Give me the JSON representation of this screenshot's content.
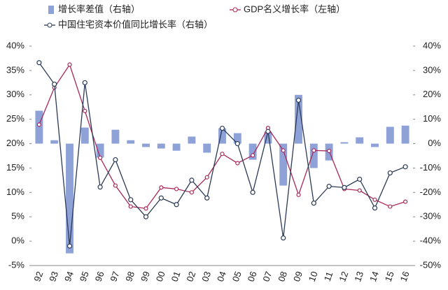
{
  "chart_data": {
    "type": "bar",
    "categories": [
      "92",
      "93",
      "94",
      "95",
      "96",
      "97",
      "98",
      "99",
      "00",
      "01",
      "02",
      "03",
      "04",
      "05",
      "06",
      "07",
      "08",
      "09",
      "10",
      "11",
      "12",
      "13",
      "14",
      "15",
      "16"
    ],
    "series": [
      {
        "name": "增长率差值（右轴）",
        "type": "bar",
        "axis": "y2",
        "color": "#8fa2d8",
        "values": [
          13.5,
          1.4,
          -45,
          6.6,
          -5.7,
          5.7,
          1.4,
          -1.4,
          -2,
          -2.9,
          2.9,
          -3.7,
          6.3,
          4.3,
          -6.6,
          4.9,
          -17.2,
          20,
          -10,
          -6.9,
          0.6,
          2.6,
          -1.4,
          6.9,
          7.4
        ]
      },
      {
        "name": "GDP名义增长率（左轴）",
        "type": "line",
        "color": "#a8285a",
        "values": [
          23.9,
          31.5,
          36.2,
          26.7,
          17.1,
          11.4,
          7.1,
          6.7,
          11,
          10.7,
          10,
          13.1,
          17.9,
          16,
          17.6,
          23.2,
          18.6,
          9.5,
          18.6,
          18.5,
          10.7,
          10.4,
          8.5,
          7.1,
          8.1
        ]
      },
      {
        "name": "中国住宅资本价值同比增长率（右轴）",
        "type": "line",
        "axis": "y2",
        "color": "#2b3a55",
        "values": [
          33.2,
          24.4,
          -42,
          25,
          -17.8,
          -6.6,
          -23,
          -30,
          -22.3,
          -25,
          -15,
          -22.3,
          6.3,
          0,
          -20,
          5,
          -38.7,
          17.8,
          -24.4,
          -17.5,
          -18,
          -14.6,
          -26.4,
          -12,
          -9.5
        ]
      }
    ],
    "ylim": [
      -5,
      40
    ],
    "yticks": [
      {
        "value": -5,
        "label": "-5%"
      },
      {
        "value": 0,
        "label": "0%"
      },
      {
        "value": 5,
        "label": "5%"
      },
      {
        "value": 10,
        "label": "10%"
      },
      {
        "value": 15,
        "label": "15%"
      },
      {
        "value": 20,
        "label": "20%"
      },
      {
        "value": 25,
        "label": "25%"
      },
      {
        "value": 30,
        "label": "30%"
      },
      {
        "value": 35,
        "label": "35%"
      },
      {
        "value": 40,
        "label": "40%"
      }
    ],
    "y2lim": [
      -50,
      40
    ],
    "y2ticks": [
      {
        "value": -50,
        "label": "-50%"
      },
      {
        "value": -40,
        "label": "-40%"
      },
      {
        "value": -30,
        "label": "-30%"
      },
      {
        "value": -20,
        "label": "-20%"
      },
      {
        "value": -10,
        "label": "-10%"
      },
      {
        "value": 0,
        "label": "0%"
      },
      {
        "value": 10,
        "label": "10%"
      },
      {
        "value": 20,
        "label": "20%"
      },
      {
        "value": 30,
        "label": "30%"
      },
      {
        "value": 40,
        "label": "40%"
      }
    ],
    "grid": false
  }
}
